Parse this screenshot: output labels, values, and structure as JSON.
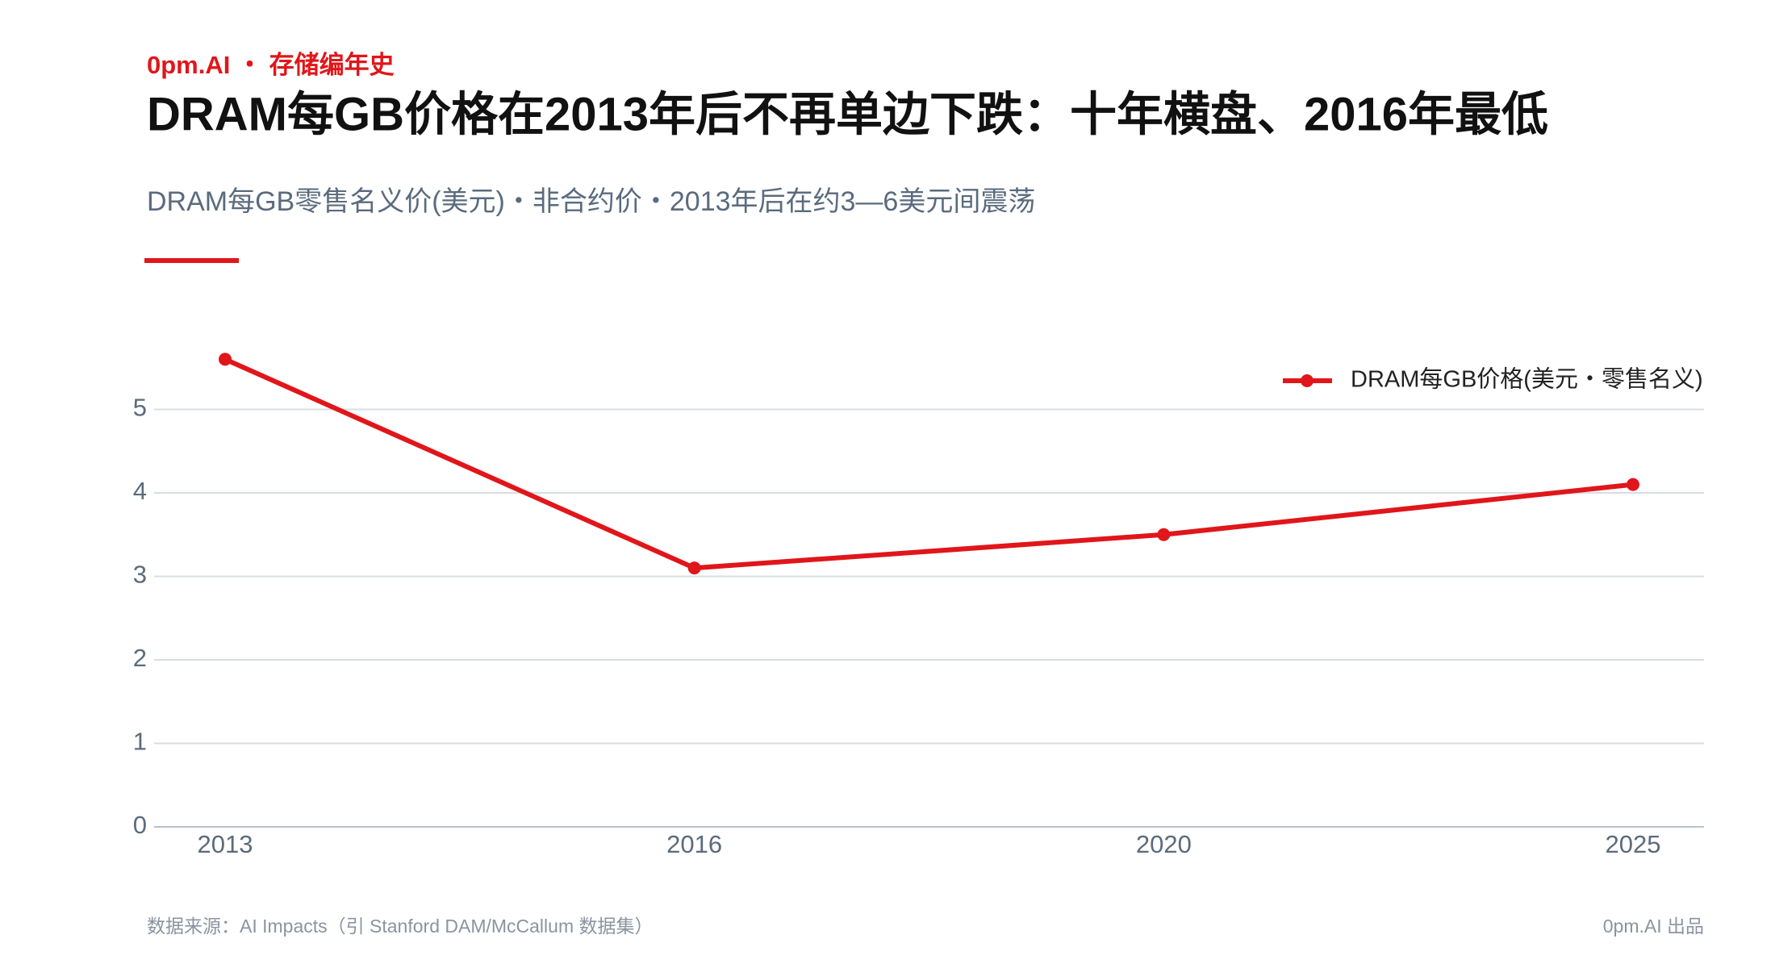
{
  "chart_data": {
    "type": "line",
    "brand": "0pm.AI ・ 存储编年史",
    "title": "DRAM每GB价格在2013年后不再单边下跌：十年横盘、2016年最低",
    "subtitle": "DRAM每GB零售名义价(美元)・非合约价・2013年后在约3—6美元间震荡",
    "categories": [
      "2013",
      "2016",
      "2020",
      "2025"
    ],
    "series": [
      {
        "name": "DRAM每GB价格(美元・零售名义)",
        "color": "#e0161b",
        "values": [
          5.6,
          3.1,
          3.5,
          4.1
        ]
      }
    ],
    "ylim": [
      0,
      6
    ],
    "yticks": [
      0,
      1,
      2,
      3,
      4,
      5
    ],
    "grid": true,
    "legend": "upper right",
    "source": "数据来源：AI Impacts（引 Stanford DAM/McCallum 数据集）",
    "credit": "0pm.AI 出品"
  }
}
